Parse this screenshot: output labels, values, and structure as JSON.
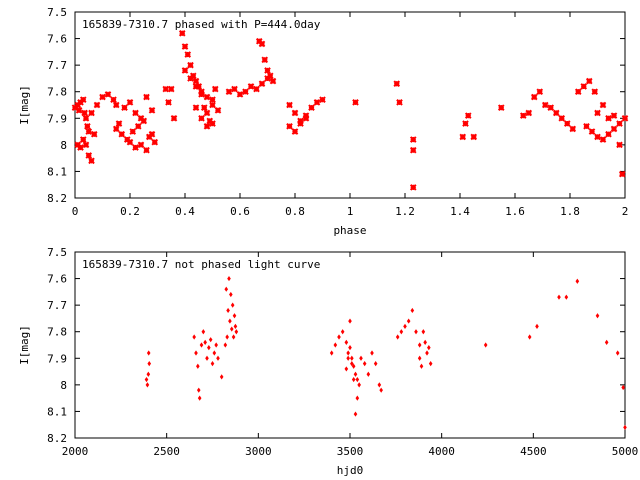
{
  "colors": {
    "marker": "#ff0000",
    "axis": "#000000",
    "background": "#ffffff"
  },
  "chart_data": [
    {
      "type": "scatter",
      "title": "165839-7310.7 phased with P=444.0day",
      "xlabel": "phase",
      "ylabel": "I[mag]",
      "xlim": [
        0,
        2
      ],
      "ylim": [
        8.2,
        7.5
      ],
      "y_inverted": true,
      "grid": false,
      "x_ticks": [
        "0",
        "0.2",
        "0.4",
        "0.6",
        "0.8",
        "1",
        "1.2",
        "1.4",
        "1.6",
        "1.8",
        "2"
      ],
      "y_ticks": [
        "7.5",
        "7.6",
        "7.7",
        "7.8",
        "7.9",
        "8",
        "8.1",
        "8.2"
      ],
      "series": [
        {
          "marker": "x-cross",
          "x": [
            0.0,
            0.01,
            0.015,
            0.02,
            0.03,
            0.035,
            0.04,
            0.045,
            0.05,
            0.06,
            0.08,
            0.1,
            0.12,
            0.14,
            0.15,
            0.01,
            0.02,
            0.03,
            0.04,
            0.05,
            0.06,
            0.07,
            0.16,
            0.18,
            0.2,
            0.22,
            0.24,
            0.26,
            0.28,
            0.15,
            0.17,
            0.19,
            0.21,
            0.23,
            0.25,
            0.27,
            0.29,
            0.2,
            0.22,
            0.24,
            0.26,
            0.28,
            0.33,
            0.34,
            0.35,
            0.36,
            0.4,
            0.42,
            0.44,
            0.46,
            0.48,
            0.5,
            0.52,
            0.39,
            0.4,
            0.41,
            0.42,
            0.43,
            0.44,
            0.45,
            0.46,
            0.47,
            0.48,
            0.49,
            0.5,
            0.51,
            0.44,
            0.46,
            0.48,
            0.5,
            0.56,
            0.58,
            0.6,
            0.62,
            0.64,
            0.66,
            0.68,
            0.7,
            0.72,
            0.67,
            0.68,
            0.69,
            0.7,
            0.71,
            0.78,
            0.8,
            0.82,
            0.84,
            0.86,
            0.88,
            0.9,
            0.78,
            0.8,
            0.82,
            0.84,
            1.02,
            1.17,
            1.18,
            1.23,
            1.23,
            1.23,
            1.41,
            1.42,
            1.43,
            1.45,
            1.55,
            1.63,
            1.65,
            1.67,
            1.69,
            1.71,
            1.73,
            1.75,
            1.77,
            1.79,
            1.81,
            1.83,
            1.85,
            1.87,
            1.89,
            1.86,
            1.88,
            1.9,
            1.92,
            1.94,
            1.96,
            1.98,
            1.9,
            1.92,
            1.94,
            1.96,
            1.98,
            1.99,
            2.0
          ],
          "y": [
            7.86,
            7.85,
            7.87,
            7.84,
            7.83,
            7.88,
            7.9,
            7.93,
            7.95,
            7.88,
            7.85,
            7.82,
            7.81,
            7.83,
            7.85,
            8.0,
            8.01,
            7.98,
            8.0,
            8.04,
            8.06,
            7.96,
            7.92,
            7.86,
            7.84,
            7.88,
            7.9,
            7.82,
            7.87,
            7.94,
            7.96,
            7.98,
            7.95,
            7.93,
            7.91,
            7.97,
            7.99,
            7.99,
            8.01,
            8.0,
            8.02,
            7.96,
            7.79,
            7.84,
            7.79,
            7.9,
            7.72,
            7.75,
            7.78,
            7.8,
            7.82,
            7.85,
            7.87,
            7.58,
            7.63,
            7.66,
            7.7,
            7.74,
            7.76,
            7.78,
            7.81,
            7.86,
            7.88,
            7.91,
            7.83,
            7.79,
            7.86,
            7.9,
            7.93,
            7.92,
            7.8,
            7.79,
            7.81,
            7.8,
            7.78,
            7.79,
            7.77,
            7.75,
            7.76,
            7.61,
            7.62,
            7.68,
            7.72,
            7.74,
            7.85,
            7.88,
            7.91,
            7.89,
            7.86,
            7.84,
            7.83,
            7.93,
            7.95,
            7.92,
            7.9,
            7.84,
            7.77,
            7.84,
            8.16,
            8.02,
            7.98,
            7.97,
            7.92,
            7.89,
            7.97,
            7.86,
            7.89,
            7.88,
            7.82,
            7.8,
            7.85,
            7.86,
            7.88,
            7.9,
            7.92,
            7.94,
            7.8,
            7.78,
            7.76,
            7.8,
            7.93,
            7.95,
            7.97,
            7.98,
            7.96,
            7.94,
            7.92,
            7.88,
            7.85,
            7.9,
            7.89,
            8.0,
            8.11,
            7.9
          ]
        }
      ]
    },
    {
      "type": "scatter",
      "title": "165839-7310.7 not phased light curve",
      "xlabel": "hjd0",
      "ylabel": "I[mag]",
      "xlim": [
        2000,
        5000
      ],
      "ylim": [
        8.2,
        7.5
      ],
      "y_inverted": true,
      "grid": false,
      "x_ticks": [
        "2000",
        "2500",
        "3000",
        "3500",
        "4000",
        "4500",
        "5000"
      ],
      "y_ticks": [
        "7.5",
        "7.6",
        "7.7",
        "7.8",
        "7.9",
        "8",
        "8.1",
        "8.2"
      ],
      "series": [
        {
          "marker": "dot",
          "x": [
            2390,
            2395,
            2400,
            2402,
            2405,
            2650,
            2660,
            2670,
            2675,
            2680,
            2690,
            2700,
            2710,
            2720,
            2730,
            2740,
            2750,
            2760,
            2770,
            2780,
            2800,
            2820,
            2830,
            2840,
            2850,
            2860,
            2870,
            2875,
            2880,
            2825,
            2835,
            2845,
            2855,
            2865,
            3400,
            3420,
            3440,
            3460,
            3480,
            3490,
            3500,
            3510,
            3520,
            3530,
            3540,
            3550,
            3480,
            3490,
            3500,
            3510,
            3520,
            3530,
            3580,
            3600,
            3620,
            3640,
            3660,
            3670,
            3540,
            3560,
            3760,
            3780,
            3800,
            3820,
            3840,
            3860,
            3880,
            3880,
            3890,
            3900,
            3910,
            3920,
            3930,
            3940,
            4240,
            4480,
            4520,
            4640,
            4680,
            4740,
            4850,
            4900,
            4960,
            4990,
            5000
          ],
          "y": [
            7.98,
            8.0,
            7.96,
            7.88,
            7.92,
            7.82,
            7.88,
            7.93,
            8.02,
            8.05,
            7.85,
            7.8,
            7.84,
            7.9,
            7.86,
            7.83,
            7.92,
            7.88,
            7.85,
            7.9,
            7.97,
            7.85,
            7.82,
            7.6,
            7.66,
            7.7,
            7.74,
            7.78,
            7.8,
            7.64,
            7.72,
            7.76,
            7.79,
            7.82,
            7.88,
            7.85,
            7.82,
            7.8,
            7.84,
            7.88,
            7.76,
            7.9,
            7.93,
            7.96,
            7.98,
            8.0,
            7.94,
            7.9,
            7.86,
            7.92,
            7.98,
            8.11,
            7.92,
            7.96,
            7.88,
            7.92,
            8.0,
            8.02,
            8.05,
            7.9,
            7.82,
            7.8,
            7.78,
            7.76,
            7.72,
            7.8,
            7.85,
            7.9,
            7.93,
            7.8,
            7.84,
            7.88,
            7.86,
            7.92,
            7.85,
            7.82,
            7.78,
            7.67,
            7.67,
            7.61,
            7.74,
            7.84,
            7.88,
            8.01,
            8.16
          ]
        }
      ]
    }
  ]
}
